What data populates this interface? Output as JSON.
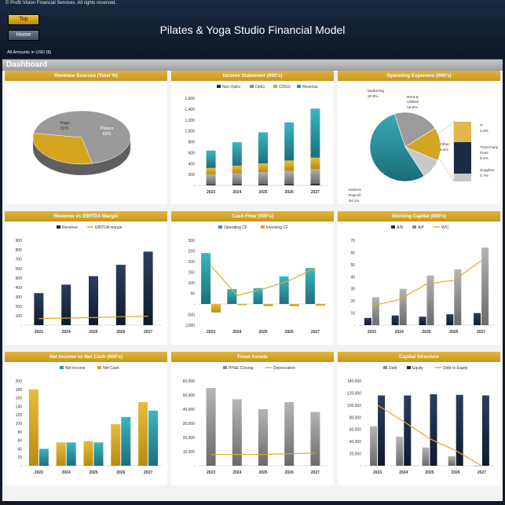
{
  "header": {
    "copyright": "© Profit Vision Financial Services. All rights reserved.",
    "top_label": "Top",
    "home_label": "Home",
    "title": "Pilates & Yoga Studio Financial Model",
    "amounts": "All Amounts in  USD ($)"
  },
  "dashboard_label": "Dashboard",
  "colors": {
    "gold": "#d4a520",
    "navy": "#1c2b45",
    "teal": "#2a9aa8",
    "grey": "#8a8a8a",
    "line": "#e0a82e"
  },
  "charts": [
    {
      "title": "Revenue Sources (Total %)",
      "chart_data": {
        "type": "pie",
        "slices": [
          {
            "label": "Pilates",
            "value": 69,
            "text": "69%"
          },
          {
            "label": "Yoga",
            "value": 31,
            "text": "31%"
          }
        ]
      }
    },
    {
      "title": "Income Statement (000's)",
      "chart_data": {
        "type": "bar",
        "categories": [
          "2023",
          "2024",
          "2025",
          "2026",
          "2027"
        ],
        "series": [
          {
            "name": "Non OpEx",
            "values": [
              20,
              22,
              24,
              26,
              28
            ]
          },
          {
            "name": "OpEx",
            "values": [
              180,
              200,
              220,
              240,
              270
            ]
          },
          {
            "name": "COGS",
            "values": [
              120,
              140,
              160,
              190,
              210
            ]
          },
          {
            "name": "Revenue",
            "values": [
              320,
              430,
              570,
              700,
              900
            ]
          }
        ],
        "legend": [
          "Non OpEx",
          "OpEx",
          "COGS",
          "Revenue"
        ],
        "ylim": [
          0,
          1600
        ],
        "yticks": [
          "-",
          "200",
          "400",
          "600",
          "800",
          "1,000",
          "1,200",
          "1,400",
          "1,600"
        ]
      }
    },
    {
      "title": "Operating Expenses (000's)",
      "chart_data": {
        "type": "pie",
        "slices": [
          {
            "label": "Indirect Payroll",
            "value": 54.1,
            "text": "54.1%"
          },
          {
            "label": "Marketing",
            "value": 20.8,
            "text": "20.8%"
          },
          {
            "label": "Rent & Utilities",
            "value": 15.6,
            "text": "15.6%"
          },
          {
            "label": "Other",
            "value": 5.6,
            "text": "5.6%"
          },
          {
            "label": "IT",
            "value": 3.3,
            "text": "3.3%"
          },
          {
            "label": "Third Party Fees",
            "value": 5.4,
            "text": "5.4%"
          },
          {
            "label": "Supplies",
            "value": 0.7,
            "text": "0.7%"
          }
        ]
      }
    },
    {
      "title": "Revenue vs EBITDA Margin",
      "chart_data": {
        "type": "bar",
        "categories": [
          "2023",
          "2024",
          "2025",
          "2026",
          "2027"
        ],
        "series": [
          {
            "name": "Revenue",
            "values": [
              340,
              430,
              520,
              640,
              780
            ]
          },
          {
            "name": "EBITDA margin",
            "values": [
              70,
              75,
              80,
              90,
              95
            ]
          }
        ],
        "legend": [
          "Revenue",
          "EBITDA margin"
        ],
        "ylim": [
          0,
          900
        ],
        "yticks": [
          "-",
          "100",
          "200",
          "300",
          "400",
          "500",
          "600",
          "700",
          "800",
          "900"
        ]
      }
    },
    {
      "title": "Cash Flow (000's)",
      "chart_data": {
        "type": "bar",
        "categories": [
          "2023",
          "2024",
          "2025",
          "2026",
          "2027"
        ],
        "series": [
          {
            "name": "Operating CF",
            "values": [
              240,
              70,
              75,
              130,
              170
            ]
          },
          {
            "name": "Investing CF",
            "values": [
              -40,
              -5,
              -10,
              -10,
              -8
            ]
          }
        ],
        "line": [
          180,
          40,
          70,
          110,
          170
        ],
        "legend": [
          "Operating CF",
          "Investing CF"
        ],
        "ylim": [
          -100,
          300
        ],
        "yticks": [
          "(100)",
          "(50)",
          "-",
          "50",
          "100",
          "150",
          "200",
          "250",
          "300"
        ]
      }
    },
    {
      "title": "Working Capital (000's)",
      "chart_data": {
        "type": "bar",
        "categories": [
          "2023",
          "2024",
          "2025",
          "2026",
          "2027"
        ],
        "series": [
          {
            "name": "A/R",
            "values": [
              6,
              8,
              7,
              9,
              10
            ]
          },
          {
            "name": "A/P",
            "values": [
              23,
              30,
              41,
              46,
              64
            ]
          },
          {
            "name": "W/C",
            "values": [
              16,
              21,
              34,
              37,
              53
            ]
          }
        ],
        "legend": [
          "A/R",
          "A/P",
          "W/C"
        ],
        "ylim": [
          0,
          70
        ],
        "yticks": [
          "-",
          "10",
          "20",
          "30",
          "40",
          "50",
          "60",
          "70"
        ]
      }
    },
    {
      "title": "Net Income vs Net Cash (000's)",
      "chart_data": {
        "type": "bar",
        "categories": [
          "2023",
          "2024",
          "2025",
          "2026",
          "2027"
        ],
        "series": [
          {
            "name": "Net Income",
            "values": [
              40,
              55,
              55,
              115,
              130
            ]
          },
          {
            "name": "Net Cash",
            "values": [
              180,
              55,
              58,
              98,
              150
            ]
          }
        ],
        "legend": [
          "Net Income",
          "Net Cash"
        ],
        "ylim": [
          0,
          200
        ],
        "yticks": [
          "-",
          "20",
          "40",
          "60",
          "80",
          "100",
          "120",
          "140",
          "160",
          "180",
          "200"
        ]
      }
    },
    {
      "title": "Fixed Assets",
      "chart_data": {
        "type": "bar",
        "categories": [
          "2023",
          "2024",
          "2025",
          "2026",
          "2027"
        ],
        "series": [
          {
            "name": "PP&E Closing",
            "values": [
              55000,
              47000,
              40000,
              45000,
              38000
            ]
          },
          {
            "name": "Depreciation",
            "values": [
              8000,
              8000,
              8000,
              8500,
              9000
            ]
          }
        ],
        "legend": [
          "PP&E Closing",
          "Depreciation"
        ],
        "ylim": [
          0,
          60000
        ],
        "yticks": [
          "-",
          "10,000",
          "20,000",
          "30,000",
          "40,000",
          "50,000",
          "60,000"
        ]
      }
    },
    {
      "title": "Capital Structure",
      "chart_data": {
        "type": "bar",
        "categories": [
          "2023",
          "2024",
          "2025",
          "2026",
          "2027"
        ],
        "series": [
          {
            "name": "Debt",
            "values": [
              65000,
              48000,
              30000,
              16000,
              0
            ]
          },
          {
            "name": "Equity",
            "values": [
              116000,
              116000,
              118000,
              117000,
              116000
            ]
          },
          {
            "name": "Debt to Equity",
            "values": [
              0.56,
              0.41,
              0.25,
              0.14,
              0
            ]
          }
        ],
        "legend": [
          "Debt",
          "Equity",
          "Debt to Equity"
        ],
        "ylim": [
          0,
          140000
        ],
        "yticks": [
          "-",
          "20,000",
          "40,000",
          "60,000",
          "80,000",
          "100,000",
          "120,000",
          "140,000"
        ]
      }
    }
  ]
}
